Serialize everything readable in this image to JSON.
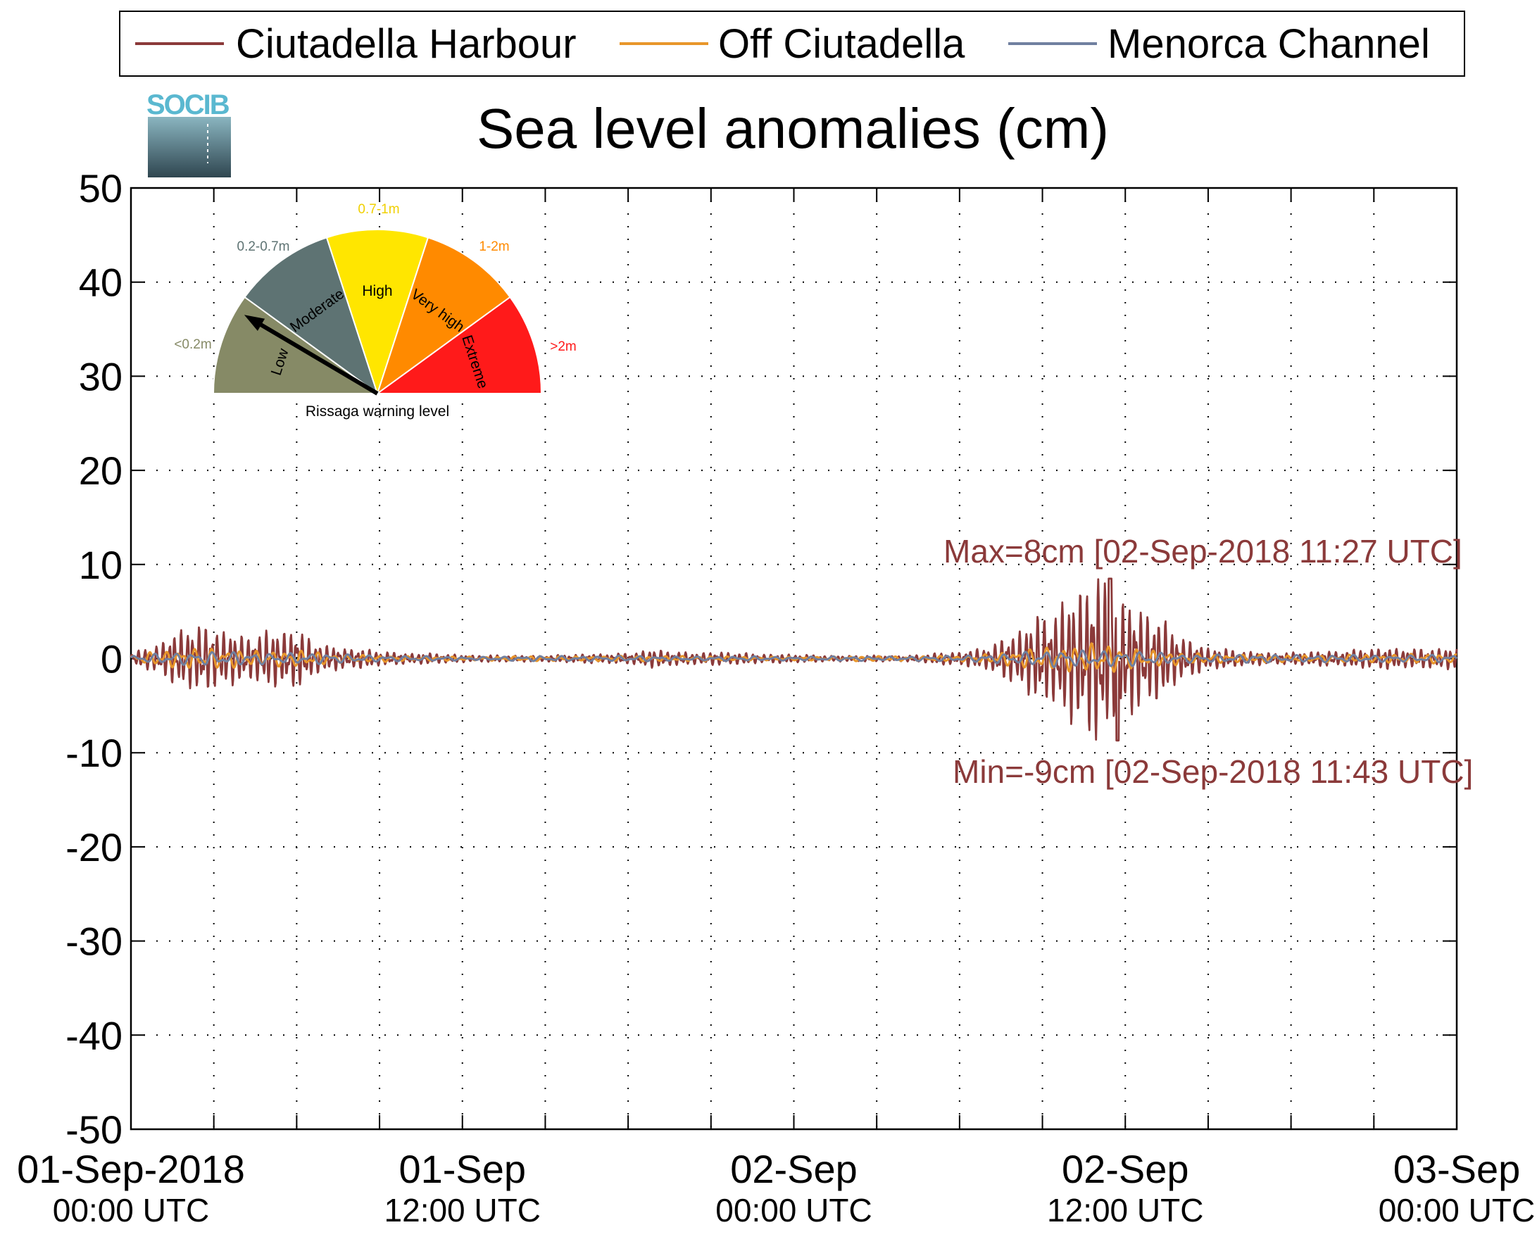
{
  "chart_data": {
    "type": "line",
    "title": "Sea level anomalies (cm)",
    "xlabel": "",
    "ylabel": "",
    "ylim": [
      -50,
      50
    ],
    "y_ticks": [
      -50,
      -40,
      -30,
      -20,
      -10,
      0,
      10,
      20,
      30,
      40,
      50
    ],
    "x_range_hours": [
      0,
      48
    ],
    "x_ticks": [
      {
        "line1": "01-Sep-2018",
        "line2": "00:00 UTC"
      },
      {
        "line1": "01-Sep",
        "line2": "12:00 UTC"
      },
      {
        "line1": "02-Sep",
        "line2": "00:00 UTC"
      },
      {
        "line1": "02-Sep",
        "line2": "12:00 UTC"
      },
      {
        "line1": "03-Sep",
        "line2": "00:00 UTC"
      }
    ],
    "grid": true,
    "legend_position": "top",
    "series": [
      {
        "name": "Ciutadella Harbour",
        "color": "#8b3a3a",
        "envelope": [
          [
            0,
            0.5
          ],
          [
            1,
            1.5
          ],
          [
            2,
            3.8
          ],
          [
            3,
            3.0
          ],
          [
            4,
            2.5
          ],
          [
            5,
            3.0
          ],
          [
            6,
            2.8
          ],
          [
            7,
            1.5
          ],
          [
            8,
            1.0
          ],
          [
            9,
            0.8
          ],
          [
            10,
            0.6
          ],
          [
            12,
            0.4
          ],
          [
            14,
            0.3
          ],
          [
            16,
            0.4
          ],
          [
            18,
            0.6
          ],
          [
            19,
            0.9
          ],
          [
            20,
            0.7
          ],
          [
            22,
            0.6
          ],
          [
            24,
            0.4
          ],
          [
            26,
            0.3
          ],
          [
            28,
            0.3
          ],
          [
            30,
            0.7
          ],
          [
            31,
            1.3
          ],
          [
            32,
            2.5
          ],
          [
            33,
            5.0
          ],
          [
            34,
            6.5
          ],
          [
            35,
            8.5
          ],
          [
            36,
            6.5
          ],
          [
            37,
            4.5
          ],
          [
            38,
            2.5
          ],
          [
            39,
            1.2
          ],
          [
            40,
            0.8
          ],
          [
            42,
            0.6
          ],
          [
            44,
            0.9
          ],
          [
            46,
            1.1
          ],
          [
            48,
            1.0
          ]
        ]
      },
      {
        "name": "Off Ciutadella",
        "color": "#e8962a",
        "envelope": [
          [
            0,
            0.3
          ],
          [
            2,
            1.2
          ],
          [
            4,
            1.0
          ],
          [
            6,
            0.8
          ],
          [
            8,
            0.4
          ],
          [
            12,
            0.2
          ],
          [
            18,
            0.3
          ],
          [
            24,
            0.2
          ],
          [
            30,
            0.3
          ],
          [
            32,
            0.8
          ],
          [
            34,
            1.4
          ],
          [
            35,
            1.6
          ],
          [
            36,
            1.4
          ],
          [
            38,
            0.6
          ],
          [
            40,
            0.4
          ],
          [
            44,
            0.4
          ],
          [
            48,
            0.5
          ]
        ]
      },
      {
        "name": "Menorca Channel",
        "color": "#7080a0",
        "envelope": [
          [
            0,
            0.3
          ],
          [
            2,
            0.8
          ],
          [
            4,
            0.7
          ],
          [
            6,
            0.6
          ],
          [
            8,
            0.4
          ],
          [
            12,
            0.2
          ],
          [
            18,
            0.3
          ],
          [
            24,
            0.2
          ],
          [
            30,
            0.3
          ],
          [
            32,
            0.6
          ],
          [
            34,
            0.9
          ],
          [
            35,
            1.0
          ],
          [
            36,
            0.9
          ],
          [
            38,
            0.5
          ],
          [
            40,
            0.4
          ],
          [
            44,
            0.4
          ],
          [
            48,
            0.4
          ]
        ]
      }
    ],
    "annotations": [
      {
        "text": "Max=8cm [02-Sep-2018 11:27 UTC]"
      },
      {
        "text": "Min=-9cm [02-Sep-2018 11:43 UTC]"
      }
    ]
  },
  "gauge": {
    "caption": "Rissaga warning level",
    "segments": [
      {
        "label": "Low",
        "range": "<0.2m",
        "color": "#868a66",
        "range_color": "#868a66"
      },
      {
        "label": "Moderate",
        "range": "0.2-0.7m",
        "color": "#5e7373",
        "range_color": "#5e7373"
      },
      {
        "label": "High",
        "range": "0.7-1m",
        "color": "#ffe600",
        "range_color": "#f0d000"
      },
      {
        "label": "Very high",
        "range": "1-2m",
        "color": "#ff8a00",
        "range_color": "#ff8a00"
      },
      {
        "label": "Extreme",
        "range": ">2m",
        "color": "#ff1a1a",
        "range_color": "#ff1a1a"
      }
    ],
    "needle_level": "Low"
  },
  "logo": {
    "text": "SOCIB"
  }
}
